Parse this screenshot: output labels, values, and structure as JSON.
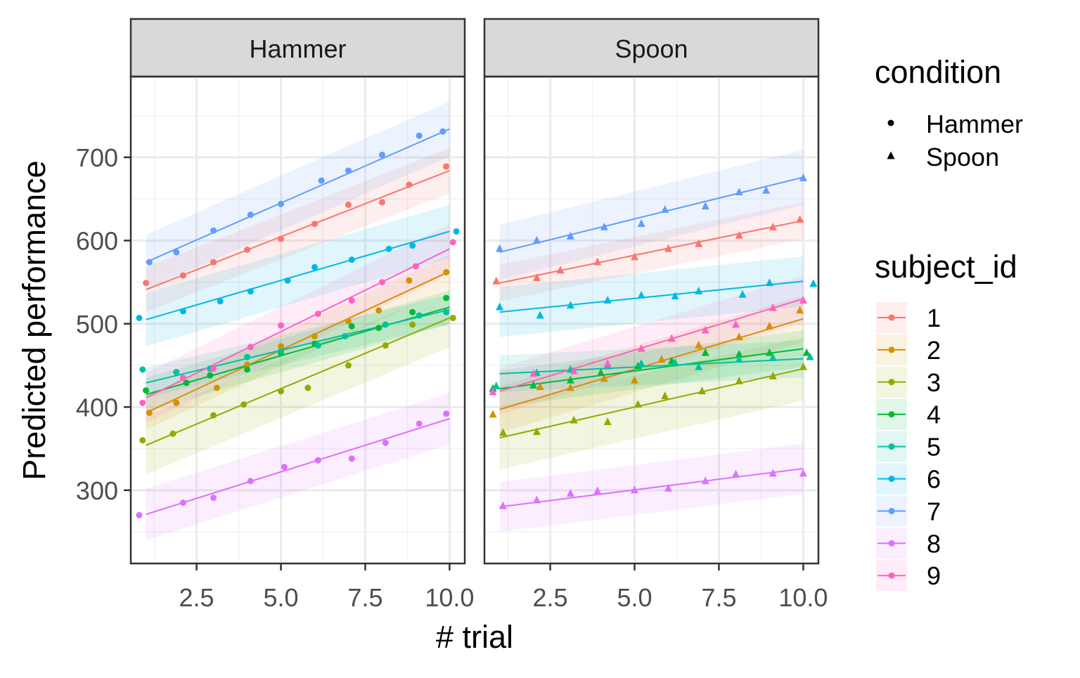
{
  "chart_data": {
    "type": "scatter",
    "subtype": "faceted scatter with linear fits and confidence ribbons",
    "x_axis_label": "# trial",
    "y_axis_label": "Predicted performance",
    "x_ticks": [
      "2.5",
      "5.0",
      "7.5",
      "10.0"
    ],
    "y_ticks": [
      "300",
      "400",
      "500",
      "600",
      "700"
    ],
    "xlim": [
      0.55,
      10.45
    ],
    "ylim": [
      212,
      797
    ],
    "facets": [
      "Hammer",
      "Spoon"
    ],
    "legend_condition": {
      "title": "condition",
      "items": [
        {
          "label": "Hammer",
          "shape": "circle"
        },
        {
          "label": "Spoon",
          "shape": "triangle"
        }
      ]
    },
    "legend_subject": {
      "title": "subject_id",
      "items": [
        {
          "label": "1",
          "color": "#F8766D"
        },
        {
          "label": "2",
          "color": "#D39200"
        },
        {
          "label": "3",
          "color": "#93AA00"
        },
        {
          "label": "4",
          "color": "#00BA38"
        },
        {
          "label": "5",
          "color": "#00C19F"
        },
        {
          "label": "6",
          "color": "#00B9E3"
        },
        {
          "label": "7",
          "color": "#619CFF"
        },
        {
          "label": "8",
          "color": "#DB72FB"
        },
        {
          "label": "9",
          "color": "#FF61C3"
        }
      ]
    },
    "panels": [
      {
        "facet": "Hammer",
        "shape": "circle",
        "series": [
          {
            "subject": "1",
            "fit": [
              541,
              684
            ],
            "band": 27,
            "points": [
              [
                1,
                549
              ],
              [
                2.1,
                558
              ],
              [
                3,
                574
              ],
              [
                4,
                589
              ],
              [
                5,
                602
              ],
              [
                6,
                620
              ],
              [
                7,
                643
              ],
              [
                8,
                646
              ],
              [
                8.8,
                667
              ],
              [
                9.9,
                689
              ]
            ]
          },
          {
            "subject": "2",
            "fit": [
              393,
              563
            ],
            "band": 20,
            "points": [
              [
                1.1,
                393
              ],
              [
                1.9,
                405
              ],
              [
                3.1,
                423
              ],
              [
                4,
                451
              ],
              [
                5,
                473
              ],
              [
                6,
                485
              ],
              [
                7,
                503
              ],
              [
                7.9,
                516
              ],
              [
                8.8,
                552
              ],
              [
                9.9,
                562
              ]
            ]
          },
          {
            "subject": "3",
            "fit": [
              354,
              507
            ],
            "band": 35,
            "points": [
              [
                0.9,
                360
              ],
              [
                1.8,
                368
              ],
              [
                3,
                390
              ],
              [
                3.9,
                403
              ],
              [
                5,
                419
              ],
              [
                5.8,
                423
              ],
              [
                7,
                450
              ],
              [
                8.1,
                474
              ],
              [
                8.9,
                499
              ],
              [
                10.1,
                507
              ]
            ]
          },
          {
            "subject": "4",
            "fit": [
              415,
              520
            ],
            "band": 20,
            "points": [
              [
                1,
                420
              ],
              [
                2.2,
                429
              ],
              [
                2.9,
                438
              ],
              [
                4,
                445
              ],
              [
                5,
                465
              ],
              [
                6,
                476
              ],
              [
                7.1,
                497
              ],
              [
                7.9,
                495
              ],
              [
                8.9,
                514
              ],
              [
                9.9,
                531
              ]
            ]
          },
          {
            "subject": "5",
            "fit": [
              429,
              517
            ],
            "band": 18,
            "points": [
              [
                0.9,
                445
              ],
              [
                1.9,
                442
              ],
              [
                2.9,
                446
              ],
              [
                4,
                460
              ],
              [
                5,
                467
              ],
              [
                6.1,
                474
              ],
              [
                6.9,
                485
              ],
              [
                8.1,
                499
              ],
              [
                9.1,
                510
              ],
              [
                9.9,
                514
              ]
            ]
          },
          {
            "subject": "6",
            "fit": [
              505,
              611
            ],
            "band": 32,
            "points": [
              [
                0.8,
                507
              ],
              [
                2.1,
                515
              ],
              [
                3.2,
                527
              ],
              [
                4.1,
                539
              ],
              [
                5.2,
                552
              ],
              [
                6,
                568
              ],
              [
                7.1,
                577
              ],
              [
                8.2,
                590
              ],
              [
                8.9,
                594
              ],
              [
                10.2,
                611
              ]
            ]
          },
          {
            "subject": "7",
            "fit": [
              574,
              734
            ],
            "band": 33,
            "points": [
              [
                1.1,
                574
              ],
              [
                1.9,
                586
              ],
              [
                3,
                612
              ],
              [
                4.1,
                631
              ],
              [
                5,
                644
              ],
              [
                6.2,
                672
              ],
              [
                7,
                684
              ],
              [
                8,
                703
              ],
              [
                9.1,
                726
              ],
              [
                9.8,
                731
              ]
            ]
          },
          {
            "subject": "8",
            "fit": [
              271,
              386
            ],
            "band": 31,
            "points": [
              [
                0.8,
                270
              ],
              [
                2.1,
                285
              ],
              [
                3,
                291
              ],
              [
                4.1,
                311
              ],
              [
                5.1,
                328
              ],
              [
                6.1,
                336
              ],
              [
                7.1,
                338
              ],
              [
                8.1,
                357
              ],
              [
                9.1,
                380
              ],
              [
                9.9,
                392
              ]
            ]
          },
          {
            "subject": "9",
            "fit": [
              411,
              590
            ],
            "band": 30,
            "points": [
              [
                0.9,
                405
              ],
              [
                2.1,
                435
              ],
              [
                3,
                446
              ],
              [
                4.1,
                472
              ],
              [
                5,
                498
              ],
              [
                6.1,
                512
              ],
              [
                7.1,
                528
              ],
              [
                8,
                550
              ],
              [
                9,
                569
              ],
              [
                10.1,
                598
              ]
            ]
          }
        ]
      },
      {
        "facet": "Spoon",
        "shape": "triangle",
        "series": [
          {
            "subject": "1",
            "fit": [
              549,
              624
            ],
            "band": 22,
            "points": [
              [
                0.9,
                551
              ],
              [
                2.1,
                555
              ],
              [
                2.8,
                564
              ],
              [
                3.9,
                574
              ],
              [
                5,
                580
              ],
              [
                6,
                590
              ],
              [
                6.9,
                596
              ],
              [
                8.1,
                606
              ],
              [
                9.1,
                616
              ],
              [
                9.9,
                625
              ]
            ]
          },
          {
            "subject": "2",
            "fit": [
              397,
              506
            ],
            "band": 28,
            "points": [
              [
                0.8,
                391
              ],
              [
                2.2,
                424
              ],
              [
                3.1,
                423
              ],
              [
                4.1,
                434
              ],
              [
                5,
                432
              ],
              [
                5.8,
                457
              ],
              [
                6.9,
                474
              ],
              [
                8.1,
                484
              ],
              [
                9,
                497
              ],
              [
                9.9,
                516
              ]
            ]
          },
          {
            "subject": "3",
            "fit": [
              363,
              446
            ],
            "band": 38,
            "points": [
              [
                1.1,
                369
              ],
              [
                2.1,
                370
              ],
              [
                3.2,
                384
              ],
              [
                4.2,
                382
              ],
              [
                5.1,
                403
              ],
              [
                5.9,
                413
              ],
              [
                7,
                419
              ],
              [
                8.1,
                431
              ],
              [
                9.1,
                437
              ],
              [
                10,
                448
              ]
            ]
          },
          {
            "subject": "4",
            "fit": [
              422,
              470
            ],
            "band": 22,
            "points": [
              [
                0.8,
                422
              ],
              [
                2,
                426
              ],
              [
                3.1,
                432
              ],
              [
                4,
                441
              ],
              [
                5.1,
                449
              ],
              [
                6.1,
                455
              ],
              [
                7.1,
                465
              ],
              [
                8.1,
                463
              ],
              [
                9,
                465
              ],
              [
                10.1,
                465
              ]
            ]
          },
          {
            "subject": "5",
            "fit": [
              440,
              458
            ],
            "band": 22,
            "points": [
              [
                0.9,
                425
              ],
              [
                2.1,
                441
              ],
              [
                3.1,
                445
              ],
              [
                4.2,
                449
              ],
              [
                5.2,
                452
              ],
              [
                6.2,
                453
              ],
              [
                6.9,
                448
              ],
              [
                8.1,
                457
              ],
              [
                9.1,
                459
              ],
              [
                10.2,
                460
              ]
            ]
          },
          {
            "subject": "6",
            "fit": [
              514,
              551
            ],
            "band": 30,
            "points": [
              [
                1,
                520
              ],
              [
                2.2,
                510
              ],
              [
                3.1,
                522
              ],
              [
                4.2,
                528
              ],
              [
                5.2,
                534
              ],
              [
                6.2,
                533
              ],
              [
                6.9,
                539
              ],
              [
                8.2,
                535
              ],
              [
                9,
                549
              ],
              [
                10.3,
                548
              ]
            ]
          },
          {
            "subject": "7",
            "fit": [
              586,
              676
            ],
            "band": 33,
            "points": [
              [
                1,
                590
              ],
              [
                2.1,
                600
              ],
              [
                3.1,
                605
              ],
              [
                4.1,
                616
              ],
              [
                5.2,
                620
              ],
              [
                5.9,
                637
              ],
              [
                7.1,
                641
              ],
              [
                8.1,
                658
              ],
              [
                8.9,
                660
              ],
              [
                10,
                675
              ]
            ]
          },
          {
            "subject": "8",
            "fit": [
              280,
              326
            ],
            "band": 30,
            "points": [
              [
                1.1,
                281
              ],
              [
                2.1,
                288
              ],
              [
                3.1,
                296
              ],
              [
                3.9,
                299
              ],
              [
                5,
                300
              ],
              [
                6,
                302
              ],
              [
                7.1,
                311
              ],
              [
                8,
                319
              ],
              [
                9.1,
                320
              ],
              [
                10,
                320
              ]
            ]
          },
          {
            "subject": "9",
            "fit": [
              419,
              530
            ],
            "band": 28,
            "points": [
              [
                0.8,
                418
              ],
              [
                2,
                440
              ],
              [
                3.2,
                443
              ],
              [
                4.2,
                452
              ],
              [
                5.2,
                470
              ],
              [
                6.1,
                482
              ],
              [
                7.1,
                492
              ],
              [
                8,
                499
              ],
              [
                9.1,
                519
              ],
              [
                10,
                528
              ]
            ]
          }
        ]
      }
    ]
  }
}
